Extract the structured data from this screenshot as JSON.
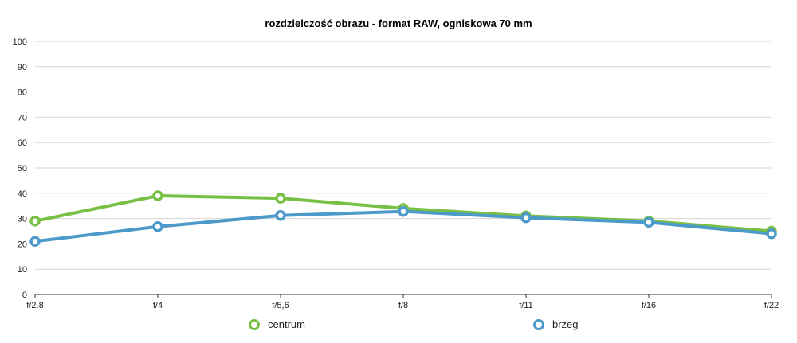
{
  "chart_data": {
    "type": "line",
    "title": "rozdzielczość obrazu - format RAW, ogniskowa 70 mm",
    "xlabel": "",
    "ylabel": "",
    "categories": [
      "f/2.8",
      "f/4",
      "f/5,6",
      "f/8",
      "f/11",
      "f/16",
      "f/22"
    ],
    "ylim": [
      0,
      100
    ],
    "yticks": [
      "0",
      "10",
      "20",
      "30",
      "40",
      "50",
      "60",
      "70",
      "80",
      "90",
      "100"
    ],
    "grid": true,
    "legend_position": "bottom",
    "series": [
      {
        "name": "centrum",
        "color": "#77c043",
        "values": [
          29,
          39,
          38,
          34,
          31,
          29,
          25
        ]
      },
      {
        "name": "brzeg",
        "color": "#4c9ac9",
        "values": [
          21,
          26.8,
          31.2,
          32.8,
          30.3,
          28.5,
          24
        ]
      }
    ]
  }
}
